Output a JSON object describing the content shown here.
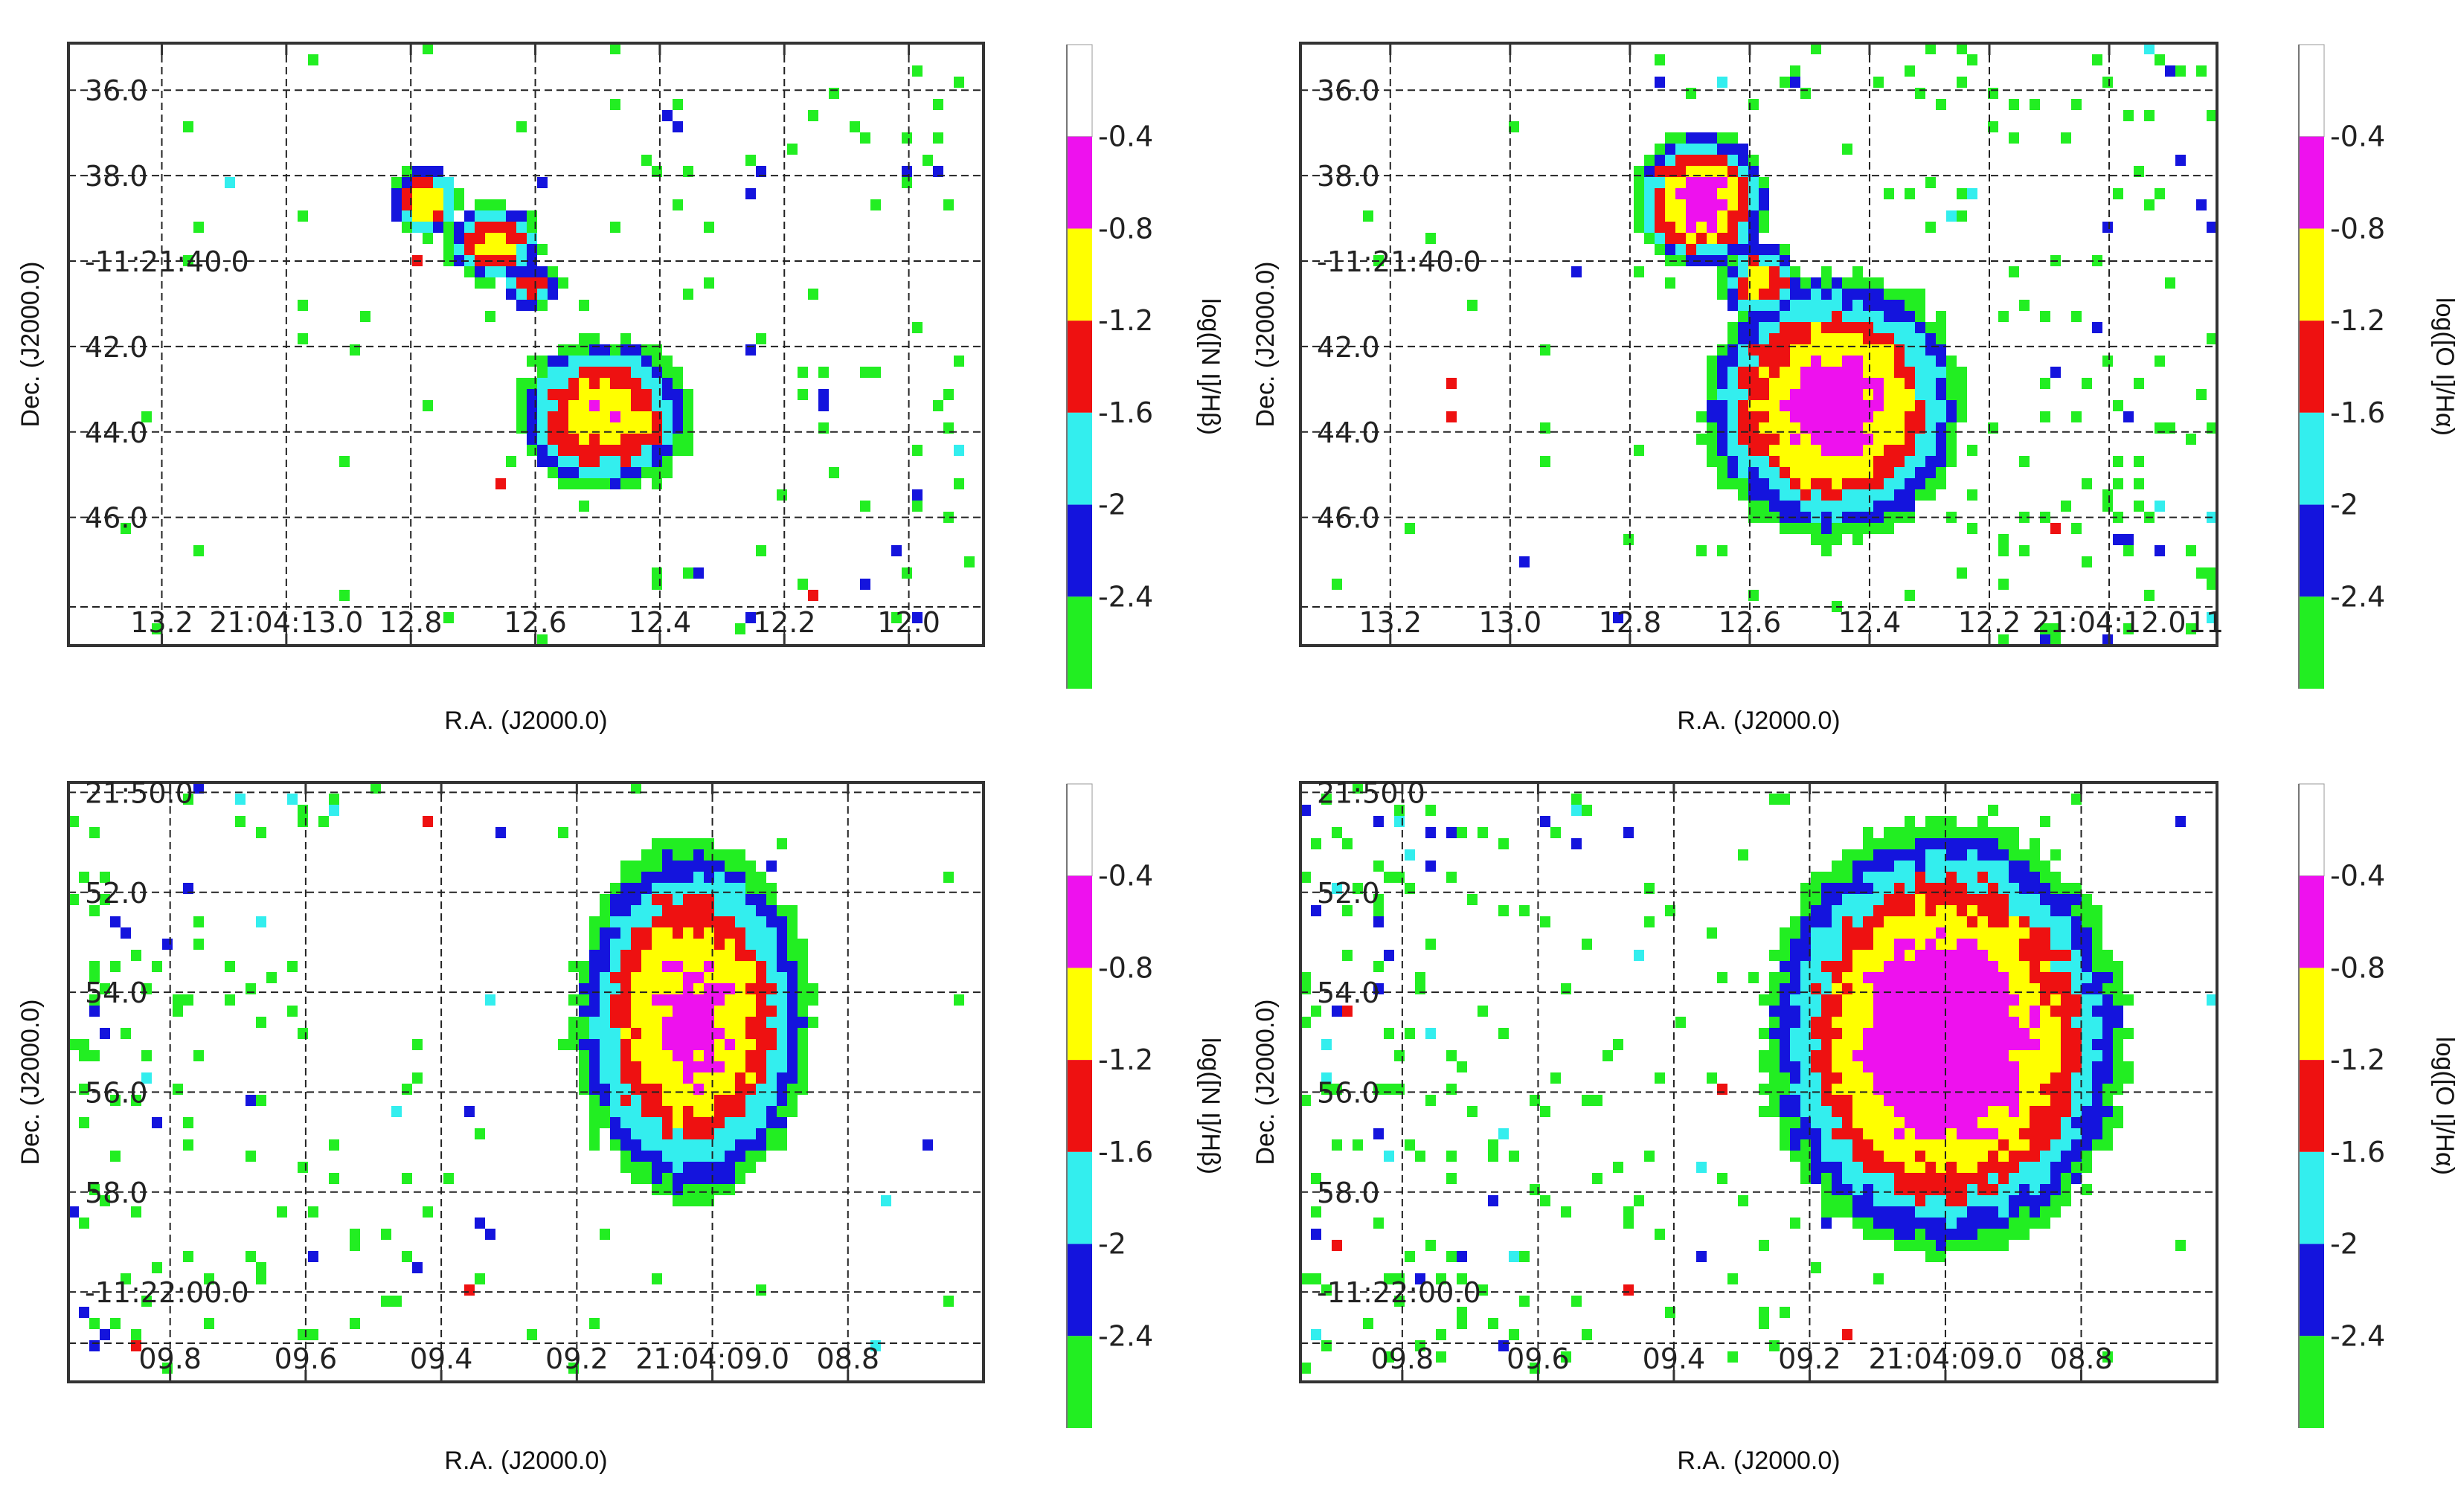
{
  "palette": {
    "l1": "#22ee22",
    "l2": "#1414dd",
    "l3": "#33eeee",
    "l4": "#ee1111",
    "l5": "#ffff00",
    "l6": "#ee11ee",
    "grid": "#222222",
    "frame": "#333333"
  },
  "chart_data": [
    {
      "type": "heatmap",
      "id": "top-left",
      "title": "",
      "xlabel": "R.A. (J2000.0)",
      "ylabel": "Dec. (J2000.0)",
      "colorbar_label": "log([N I]/Hβ)",
      "colorbar_ticks": [
        "-0.4",
        "-0.8",
        "-1.2",
        "-1.6",
        "-2",
        "-2.4"
      ],
      "colorbar_levels": [
        -2.8,
        -2.4,
        -2.0,
        -1.6,
        -1.2,
        -0.8,
        -0.4
      ],
      "xticks": [
        "13.2",
        "21:04:13.0",
        "12.8",
        "12.6",
        "12.4",
        "12.2",
        "12.0"
      ],
      "yticks": [
        "36.0",
        "38.0",
        "-11:21:40.0",
        "42.0",
        "44.0",
        "46.0"
      ],
      "blobs": [
        {
          "cx": 12.48,
          "cy": 43.6,
          "rx": 0.12,
          "ry": 1.5,
          "peak": -0.85
        },
        {
          "cx": 12.66,
          "cy": 39.6,
          "rx": 0.07,
          "ry": 0.8,
          "peak": -0.95
        },
        {
          "cx": 12.77,
          "cy": 38.6,
          "rx": 0.05,
          "ry": 0.7,
          "peak": -0.85
        },
        {
          "cx": 12.6,
          "cy": 40.6,
          "rx": 0.045,
          "ry": 0.5,
          "peak": -1.25
        }
      ],
      "scatter_density": 0.25
    },
    {
      "type": "heatmap",
      "id": "top-right",
      "title": "",
      "xlabel": "R.A. (J2000.0)",
      "ylabel": "Dec. (J2000.0)",
      "colorbar_label": "log([O I]/Hα)",
      "colorbar_ticks": [
        "-0.4",
        "-0.8",
        "-1.2",
        "-1.6",
        "-2",
        "-2.4"
      ],
      "colorbar_levels": [
        -2.8,
        -2.4,
        -2.0,
        -1.6,
        -1.2,
        -0.8,
        -0.4
      ],
      "xticks": [
        "13.2",
        "13.0",
        "12.8",
        "12.6",
        "12.4",
        "12.2",
        "21:04:12.0",
        "11"
      ],
      "yticks": [
        "36.0",
        "38.0",
        "-11:21:40.0",
        "42.0",
        "44.0",
        "46.0"
      ],
      "blobs": [
        {
          "cx": 12.46,
          "cy": 43.4,
          "rx": 0.17,
          "ry": 2.4,
          "peak": -0.5
        },
        {
          "cx": 12.68,
          "cy": 38.6,
          "rx": 0.09,
          "ry": 1.3,
          "peak": -0.55
        },
        {
          "cx": 12.58,
          "cy": 40.5,
          "rx": 0.06,
          "ry": 0.9,
          "peak": -1.1
        }
      ],
      "scatter_density": 0.45
    },
    {
      "type": "heatmap",
      "id": "bottom-left",
      "title": "",
      "xlabel": "R.A. (J2000.0)",
      "ylabel": "Dec. (J2000.0)",
      "colorbar_label": "log([N I]/Hβ)",
      "colorbar_ticks": [
        "-0.4",
        "-0.8",
        "-1.2",
        "-1.6",
        "-2",
        "-2.4"
      ],
      "colorbar_levels": [
        -2.8,
        -2.4,
        -2.0,
        -1.6,
        -1.2,
        -0.8,
        -0.4
      ],
      "xticks": [
        "09.8",
        "09.6",
        "09.4",
        "09.2",
        "21:04:09.0",
        "08.8"
      ],
      "yticks": [
        "21:50.0",
        "52.0",
        "54.0",
        "56.0",
        "58.0",
        "-11:22:00.0"
      ],
      "blobs": [
        {
          "cx": 9.02,
          "cy": 54.6,
          "rx": 0.14,
          "ry": 2.9,
          "peak": -0.6
        }
      ],
      "scatter_density": 0.35
    },
    {
      "type": "heatmap",
      "id": "bottom-right",
      "title": "",
      "xlabel": "R.A. (J2000.0)",
      "ylabel": "Dec. (J2000.0)",
      "colorbar_label": "log([O I]/Hα)",
      "colorbar_ticks": [
        "-0.4",
        "-0.8",
        "-1.2",
        "-1.6",
        "-2",
        "-2.4"
      ],
      "colorbar_levels": [
        -2.8,
        -2.4,
        -2.0,
        -1.6,
        -1.2,
        -0.8,
        -0.4
      ],
      "xticks": [
        "09.8",
        "09.6",
        "09.4",
        "09.2",
        "21:04:09.0",
        "08.8"
      ],
      "yticks": [
        "21:50.0",
        "52.0",
        "54.0",
        "56.0",
        "58.0",
        "-11:22:00.0"
      ],
      "blobs": [
        {
          "cx": 9.0,
          "cy": 55.0,
          "rx": 0.2,
          "ry": 3.3,
          "peak": -0.3
        }
      ],
      "scatter_density": 0.5
    }
  ]
}
